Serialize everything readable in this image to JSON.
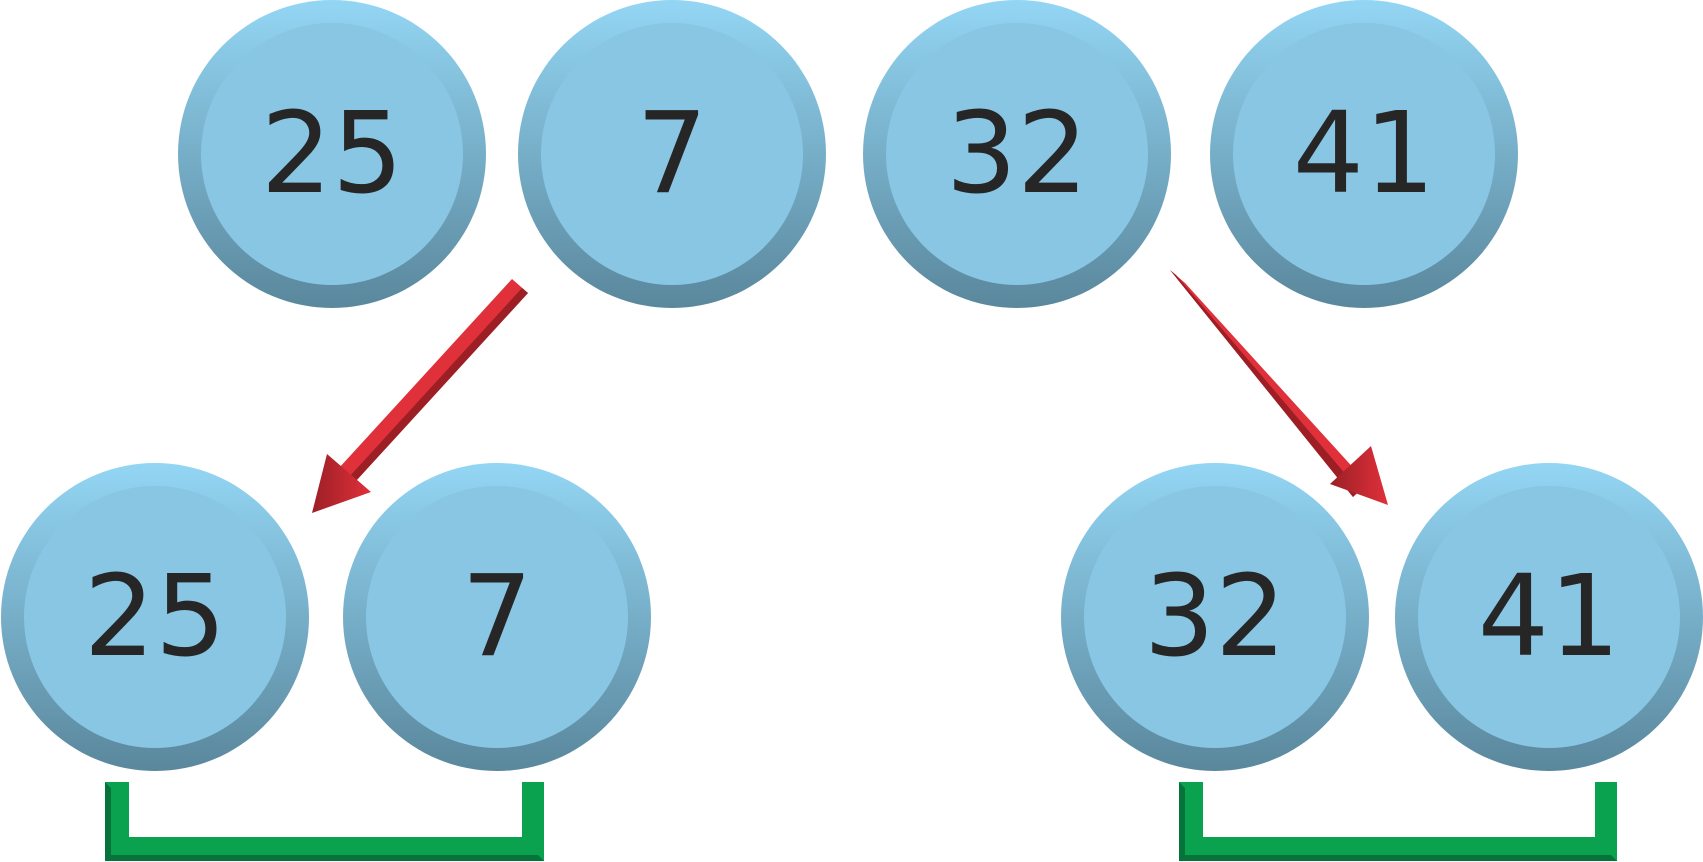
{
  "diagram": {
    "top_row": [
      {
        "label": "25"
      },
      {
        "label": "7"
      },
      {
        "label": "32"
      },
      {
        "label": "41"
      }
    ],
    "bottom_left": [
      {
        "label": "25"
      },
      {
        "label": "7"
      }
    ],
    "bottom_right": [
      {
        "label": "32"
      },
      {
        "label": "41"
      }
    ],
    "colors": {
      "node_fill": "#88c6e4",
      "node_rim_light": "#93d6f4",
      "node_rim_dark": "#5a879c",
      "label": "#262626",
      "arrow": "#e0303a",
      "arrow_dark": "#9c1f26",
      "bracket": "#0aa24e",
      "bracket_dark": "#06743a"
    }
  }
}
